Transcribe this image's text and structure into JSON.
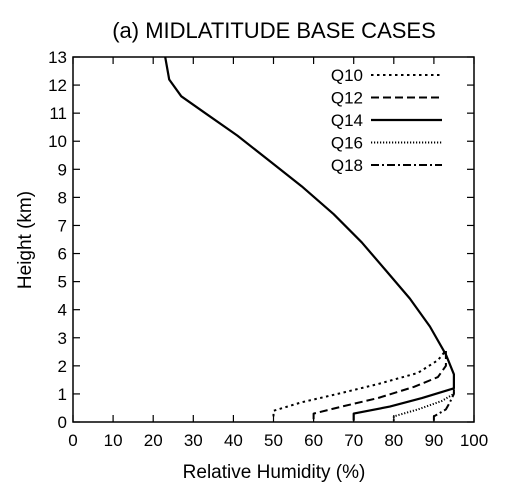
{
  "chart_data": {
    "type": "line",
    "title": "(a) MIDLATITUDE BASE CASES",
    "xlabel": "Relative Humidity (%)",
    "ylabel": "Height (km)",
    "xlim": [
      0,
      100
    ],
    "ylim": [
      0,
      13
    ],
    "xticks": [
      0,
      10,
      20,
      30,
      40,
      50,
      60,
      70,
      80,
      90,
      100
    ],
    "yticks": [
      0,
      1,
      2,
      3,
      4,
      5,
      6,
      7,
      8,
      9,
      10,
      11,
      12,
      13
    ],
    "legend_position": "top-right",
    "series": [
      {
        "name": "Q10",
        "dash": "dotted",
        "points": [
          [
            50,
            0.2
          ],
          [
            50,
            0.4
          ],
          [
            57,
            0.7
          ],
          [
            66,
            1.0
          ],
          [
            76,
            1.35
          ],
          [
            86,
            1.75
          ],
          [
            91,
            2.2
          ],
          [
            93,
            2.55
          ]
        ]
      },
      {
        "name": "Q12",
        "dash": "dashed",
        "points": [
          [
            60,
            0.1
          ],
          [
            60,
            0.3
          ],
          [
            67,
            0.55
          ],
          [
            76,
            0.85
          ],
          [
            85,
            1.25
          ],
          [
            91,
            1.6
          ],
          [
            93,
            2.0
          ],
          [
            93,
            2.55
          ]
        ]
      },
      {
        "name": "Q14",
        "dash": "solid",
        "points": [
          [
            23,
            13.0
          ],
          [
            24,
            12.2
          ],
          [
            27,
            11.6
          ],
          [
            33,
            11.0
          ],
          [
            41,
            10.2
          ],
          [
            49,
            9.3
          ],
          [
            57,
            8.4
          ],
          [
            65,
            7.4
          ],
          [
            72,
            6.4
          ],
          [
            78,
            5.4
          ],
          [
            84,
            4.4
          ],
          [
            89,
            3.4
          ],
          [
            93,
            2.4
          ],
          [
            95,
            1.7
          ],
          [
            95,
            1.2
          ],
          [
            87,
            0.85
          ],
          [
            79,
            0.55
          ],
          [
            70,
            0.3
          ],
          [
            70,
            0.05
          ]
        ]
      },
      {
        "name": "Q16",
        "dash": "fine-dotted",
        "points": [
          [
            80,
            0.05
          ],
          [
            80,
            0.2
          ],
          [
            86,
            0.45
          ],
          [
            92,
            0.75
          ],
          [
            95,
            1.0
          ],
          [
            95,
            1.2
          ]
        ]
      },
      {
        "name": "Q18",
        "dash": "dash-dot",
        "points": [
          [
            90,
            0.05
          ],
          [
            90,
            0.2
          ],
          [
            93,
            0.45
          ],
          [
            94,
            0.7
          ],
          [
            95,
            1.0
          ],
          [
            95,
            1.2
          ]
        ]
      }
    ]
  }
}
